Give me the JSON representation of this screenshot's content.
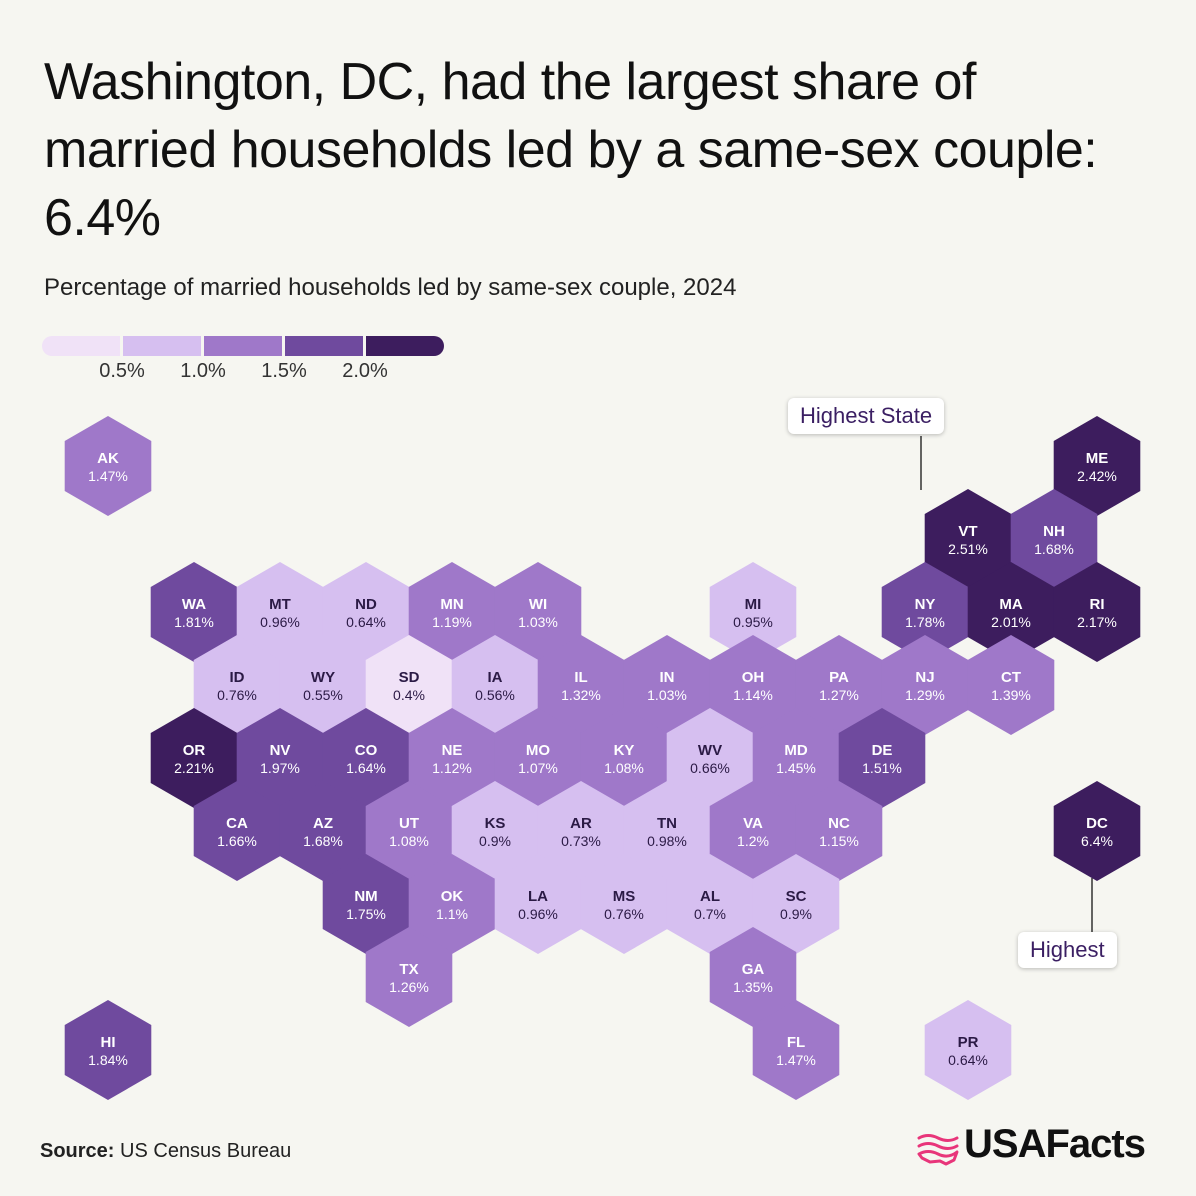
{
  "title": "Washington, DC, had the largest share of married households led by a same-sex couple: 6.4%",
  "subtitle": "Percentage of married households led by same-sex couple, 2024",
  "legend": {
    "colors": [
      "#f0e2f7",
      "#d6bff0",
      "#9f78c9",
      "#6f4a9e",
      "#3d1d5e"
    ],
    "labels": [
      "0.5%",
      "1.0%",
      "1.5%",
      "2.0%"
    ]
  },
  "callouts": {
    "state": "Highest State",
    "overall": "Highest"
  },
  "source": {
    "label": "Source:",
    "text": "US Census Bureau"
  },
  "brand": {
    "name": "USAFacts",
    "color": "#e8357a",
    "icon": "usafacts-flag-map-icon"
  },
  "chart_data": {
    "type": "hexmap",
    "unit": "%",
    "thresholds": [
      0.5,
      1.0,
      1.5,
      2.0
    ],
    "states": [
      {
        "code": "AK",
        "value": "1.47%",
        "v": 1.47,
        "col": 0,
        "row": 0
      },
      {
        "code": "ME",
        "value": "2.42%",
        "v": 2.42,
        "col": 11.5,
        "row": 0
      },
      {
        "code": "VT",
        "value": "2.51%",
        "v": 2.51,
        "col": 10,
        "row": 1
      },
      {
        "code": "NH",
        "value": "1.68%",
        "v": 1.68,
        "col": 11,
        "row": 1
      },
      {
        "code": "WA",
        "value": "1.81%",
        "v": 1.81,
        "col": 1,
        "row": 2
      },
      {
        "code": "MT",
        "value": "0.96%",
        "v": 0.96,
        "col": 2,
        "row": 2
      },
      {
        "code": "ND",
        "value": "0.64%",
        "v": 0.64,
        "col": 3,
        "row": 2
      },
      {
        "code": "MN",
        "value": "1.19%",
        "v": 1.19,
        "col": 4,
        "row": 2
      },
      {
        "code": "WI",
        "value": "1.03%",
        "v": 1.03,
        "col": 5,
        "row": 2
      },
      {
        "code": "MI",
        "value": "0.95%",
        "v": 0.95,
        "col": 7.5,
        "row": 2
      },
      {
        "code": "NY",
        "value": "1.78%",
        "v": 1.78,
        "col": 9.5,
        "row": 2
      },
      {
        "code": "MA",
        "value": "2.01%",
        "v": 2.01,
        "col": 10.5,
        "row": 2
      },
      {
        "code": "RI",
        "value": "2.17%",
        "v": 2.17,
        "col": 11.5,
        "row": 2
      },
      {
        "code": "ID",
        "value": "0.76%",
        "v": 0.76,
        "col": 1.5,
        "row": 3
      },
      {
        "code": "WY",
        "value": "0.55%",
        "v": 0.55,
        "col": 2.5,
        "row": 3
      },
      {
        "code": "SD",
        "value": "0.4%",
        "v": 0.4,
        "col": 3.5,
        "row": 3
      },
      {
        "code": "IA",
        "value": "0.56%",
        "v": 0.56,
        "col": 4.5,
        "row": 3
      },
      {
        "code": "IL",
        "value": "1.32%",
        "v": 1.32,
        "col": 5.5,
        "row": 3
      },
      {
        "code": "IN",
        "value": "1.03%",
        "v": 1.03,
        "col": 6.5,
        "row": 3
      },
      {
        "code": "OH",
        "value": "1.14%",
        "v": 1.14,
        "col": 7.5,
        "row": 3
      },
      {
        "code": "PA",
        "value": "1.27%",
        "v": 1.27,
        "col": 8.5,
        "row": 3
      },
      {
        "code": "NJ",
        "value": "1.29%",
        "v": 1.29,
        "col": 9.5,
        "row": 3
      },
      {
        "code": "CT",
        "value": "1.39%",
        "v": 1.39,
        "col": 10.5,
        "row": 3
      },
      {
        "code": "OR",
        "value": "2.21%",
        "v": 2.21,
        "col": 1,
        "row": 4
      },
      {
        "code": "NV",
        "value": "1.97%",
        "v": 1.97,
        "col": 2,
        "row": 4
      },
      {
        "code": "CO",
        "value": "1.64%",
        "v": 1.64,
        "col": 3,
        "row": 4
      },
      {
        "code": "NE",
        "value": "1.12%",
        "v": 1.12,
        "col": 4,
        "row": 4
      },
      {
        "code": "MO",
        "value": "1.07%",
        "v": 1.07,
        "col": 5,
        "row": 4
      },
      {
        "code": "KY",
        "value": "1.08%",
        "v": 1.08,
        "col": 6,
        "row": 4
      },
      {
        "code": "WV",
        "value": "0.66%",
        "v": 0.66,
        "col": 7,
        "row": 4
      },
      {
        "code": "MD",
        "value": "1.45%",
        "v": 1.45,
        "col": 8,
        "row": 4
      },
      {
        "code": "DE",
        "value": "1.51%",
        "v": 1.51,
        "col": 9,
        "row": 4
      },
      {
        "code": "CA",
        "value": "1.66%",
        "v": 1.66,
        "col": 1.5,
        "row": 5
      },
      {
        "code": "AZ",
        "value": "1.68%",
        "v": 1.68,
        "col": 2.5,
        "row": 5
      },
      {
        "code": "UT",
        "value": "1.08%",
        "v": 1.08,
        "col": 3.5,
        "row": 5
      },
      {
        "code": "KS",
        "value": "0.9%",
        "v": 0.9,
        "col": 4.5,
        "row": 5
      },
      {
        "code": "AR",
        "value": "0.73%",
        "v": 0.73,
        "col": 5.5,
        "row": 5
      },
      {
        "code": "TN",
        "value": "0.98%",
        "v": 0.98,
        "col": 6.5,
        "row": 5
      },
      {
        "code": "VA",
        "value": "1.2%",
        "v": 1.2,
        "col": 7.5,
        "row": 5
      },
      {
        "code": "NC",
        "value": "1.15%",
        "v": 1.15,
        "col": 8.5,
        "row": 5
      },
      {
        "code": "DC",
        "value": "6.4%",
        "v": 6.4,
        "col": 11.5,
        "row": 5
      },
      {
        "code": "NM",
        "value": "1.75%",
        "v": 1.75,
        "col": 3,
        "row": 6
      },
      {
        "code": "OK",
        "value": "1.1%",
        "v": 1.1,
        "col": 4,
        "row": 6
      },
      {
        "code": "LA",
        "value": "0.96%",
        "v": 0.96,
        "col": 5,
        "row": 6
      },
      {
        "code": "MS",
        "value": "0.76%",
        "v": 0.76,
        "col": 6,
        "row": 6
      },
      {
        "code": "AL",
        "value": "0.7%",
        "v": 0.7,
        "col": 7,
        "row": 6
      },
      {
        "code": "SC",
        "value": "0.9%",
        "v": 0.9,
        "col": 8,
        "row": 6
      },
      {
        "code": "TX",
        "value": "1.26%",
        "v": 1.26,
        "col": 3.5,
        "row": 7
      },
      {
        "code": "GA",
        "value": "1.35%",
        "v": 1.35,
        "col": 7.5,
        "row": 7
      },
      {
        "code": "HI",
        "value": "1.84%",
        "v": 1.84,
        "col": 0,
        "row": 8
      },
      {
        "code": "FL",
        "value": "1.47%",
        "v": 1.47,
        "col": 8,
        "row": 8
      },
      {
        "code": "PR",
        "value": "0.64%",
        "v": 0.64,
        "col": 10,
        "row": 8
      }
    ]
  }
}
